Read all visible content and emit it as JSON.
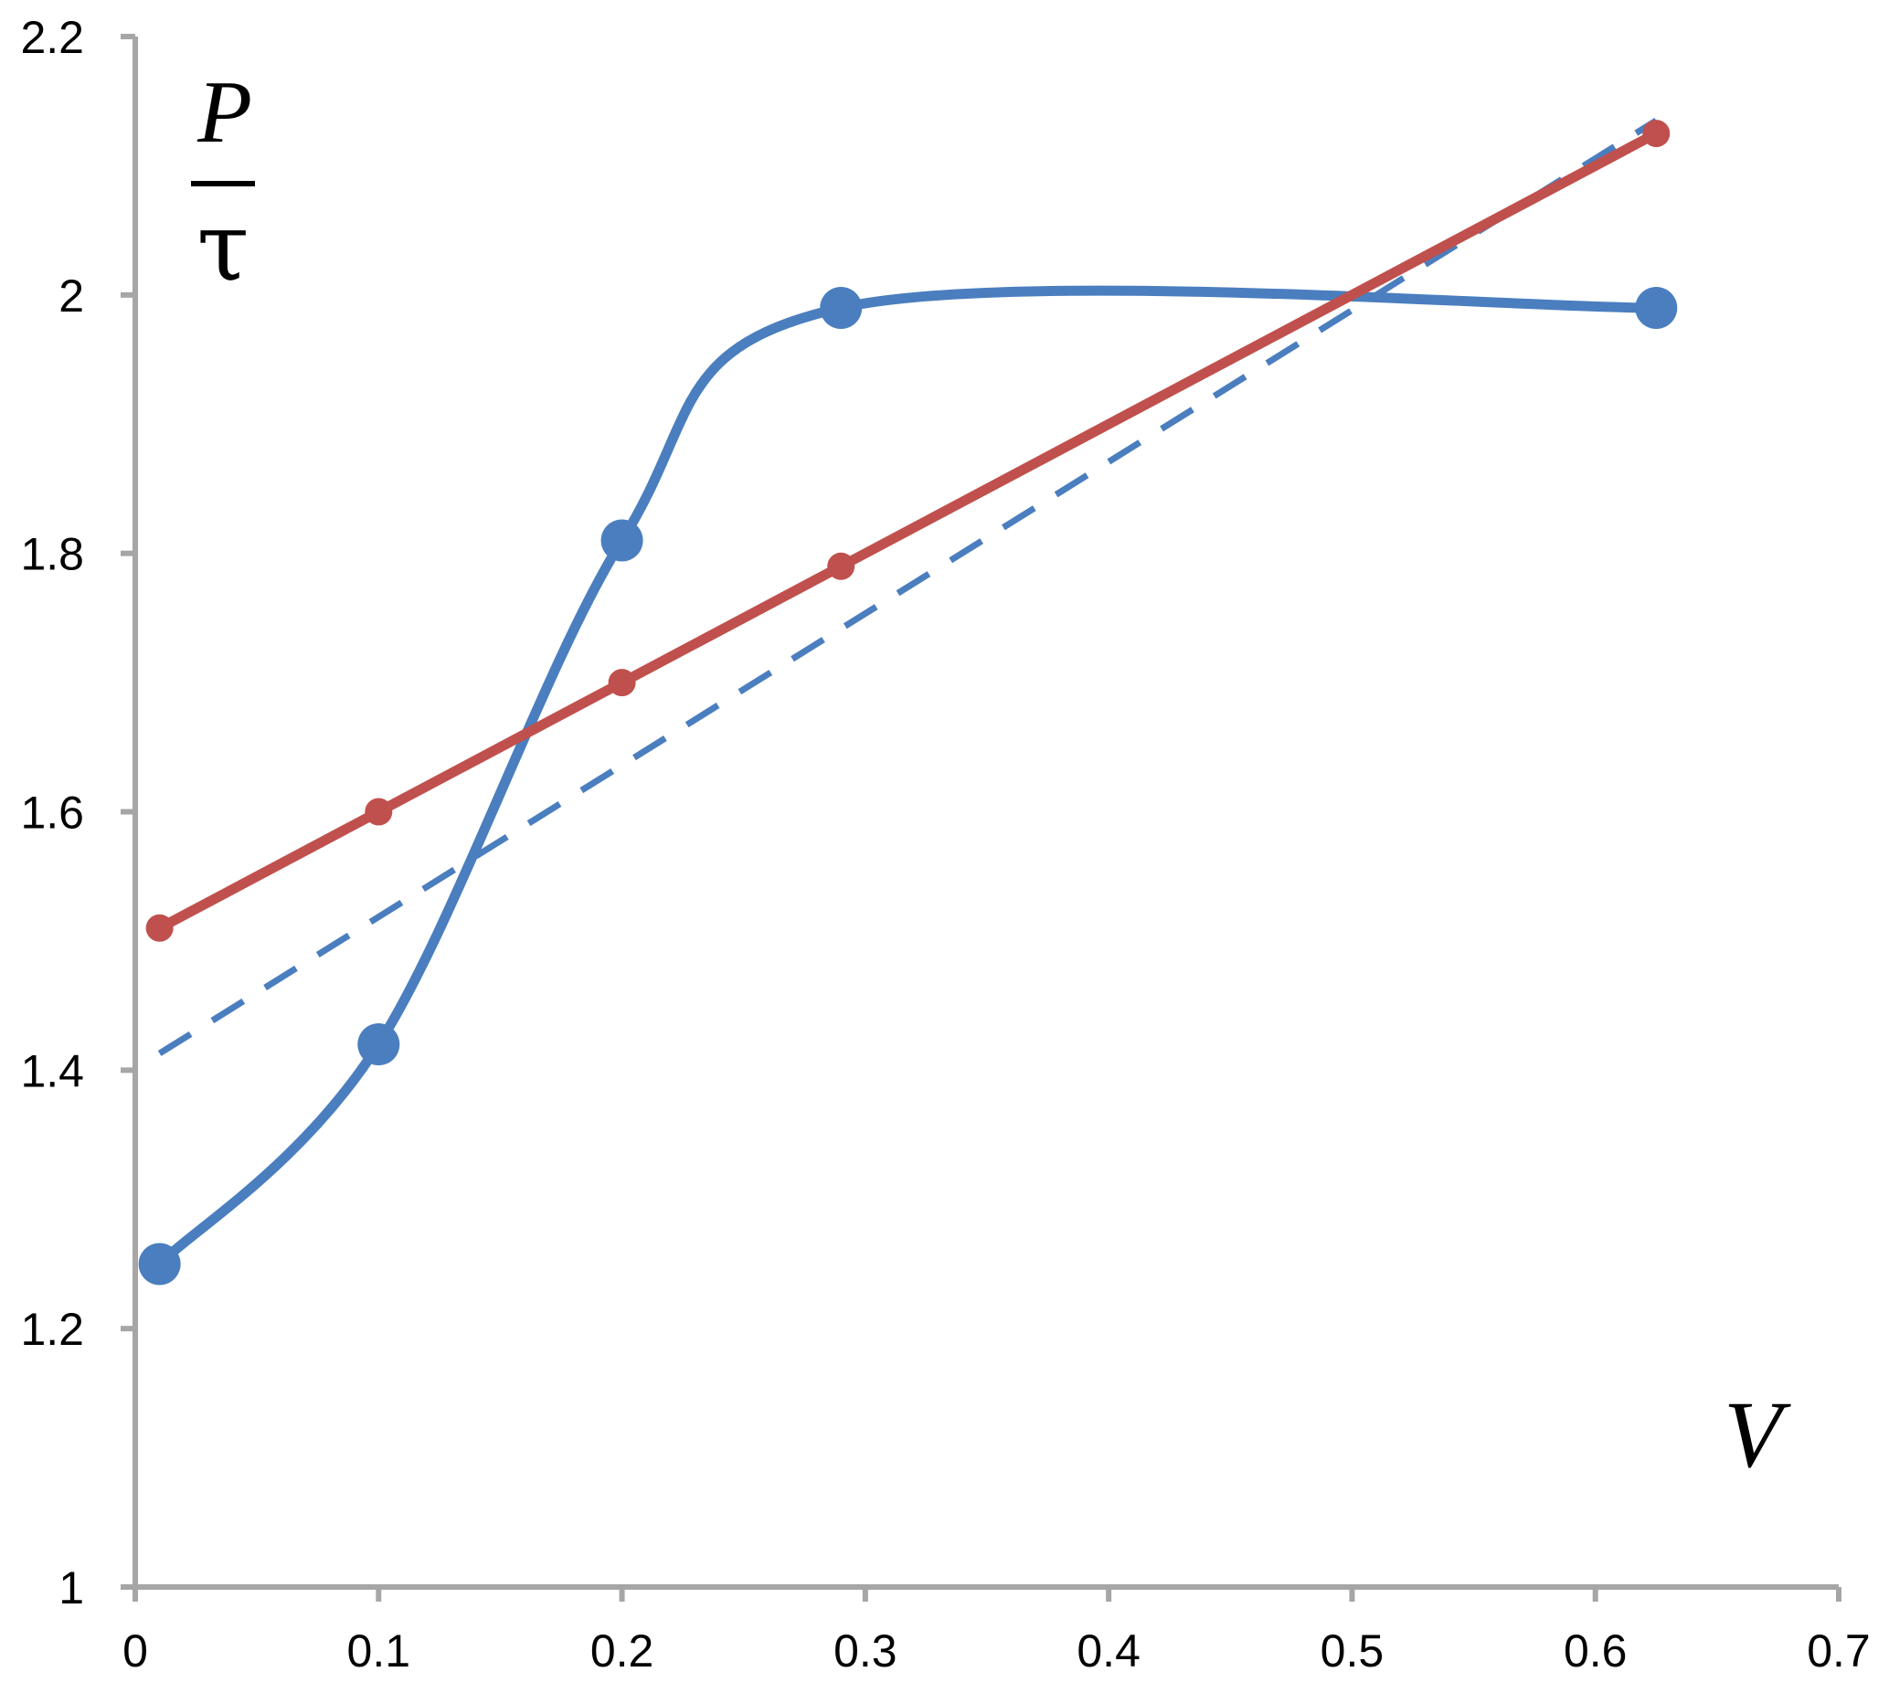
{
  "chart_data": {
    "type": "line",
    "title": "",
    "ylabel": {
      "numerator": "P",
      "denominator": "τ"
    },
    "xlabel": "V",
    "xlim": [
      0,
      0.7
    ],
    "ylim": [
      1,
      2.2
    ],
    "x_ticks": [
      0,
      0.1,
      0.2,
      0.3,
      0.4,
      0.5,
      0.6,
      0.7
    ],
    "x_tick_labels": [
      "0",
      "0.1",
      "0.2",
      "0.3",
      "0.4",
      "0.5",
      "0.6",
      "0.7"
    ],
    "y_ticks": [
      1,
      1.2,
      1.4,
      1.6,
      1.8,
      2,
      2.2
    ],
    "y_tick_labels": [
      "1",
      "1.2",
      "1.4",
      "1.6",
      "1.8",
      "2",
      "2.2"
    ],
    "grid": false,
    "legend": "none",
    "series": [
      {
        "style": "smooth-line-large-markers",
        "color": "#4a7ebf",
        "x": [
          0.01,
          0.1,
          0.2,
          0.29,
          0.625
        ],
        "y": [
          1.25,
          1.42,
          1.81,
          1.99,
          1.99
        ]
      },
      {
        "style": "line-small-markers",
        "color": "#c0504d",
        "x": [
          0.01,
          0.1,
          0.2,
          0.29,
          0.625
        ],
        "y": [
          1.51,
          1.6,
          1.7,
          1.79,
          2.125
        ]
      },
      {
        "style": "dashed-line",
        "color": "#4a7ebf",
        "x": [
          0.01,
          0.625
        ],
        "y": [
          1.413,
          2.135
        ]
      }
    ]
  }
}
